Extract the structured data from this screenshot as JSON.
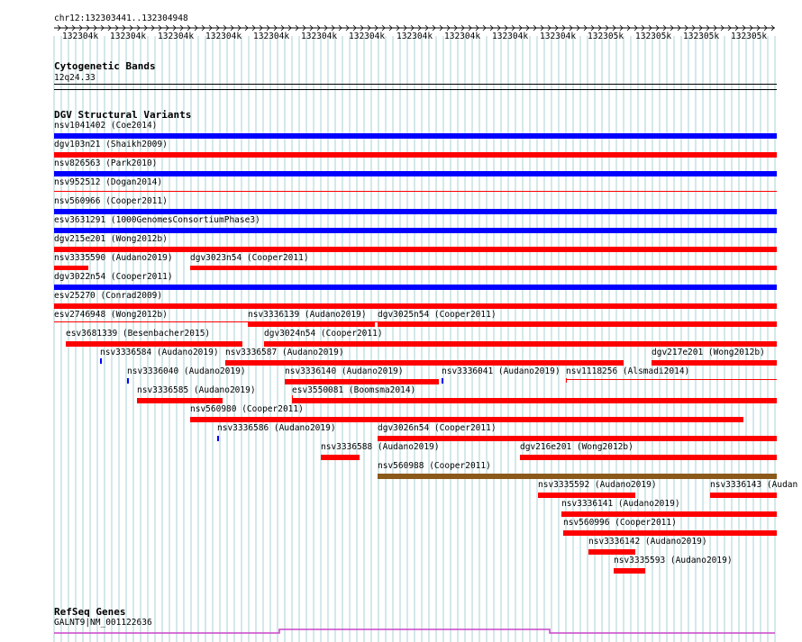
{
  "colors": {
    "red": "#ff0000",
    "blue": "#0000ff",
    "brown": "#8b5a1a",
    "grid": "#a8d0d4",
    "gene": "#cc44cc"
  },
  "ruler": {
    "location": "chr12:132303441..132304948",
    "ticks": [
      "132304k",
      "132304k",
      "132304k",
      "132304k",
      "132304k",
      "132304k",
      "132304k",
      "132304k",
      "132304k",
      "132304k",
      "132304k",
      "132305k",
      "132305k",
      "132305k",
      "132305k"
    ]
  },
  "cytoband": {
    "title": "Cytogenetic Bands",
    "band": "12q24.33"
  },
  "dgv": {
    "title": "DGV Structural Variants",
    "features": [
      {
        "label": "nsv1041402 (Coe2014)",
        "color": "blue"
      },
      {
        "label": "dgv103n21 (Shaikh2009)",
        "color": "red"
      },
      {
        "label": "nsv826563 (Park2010)",
        "color": "blue"
      },
      {
        "label": "nsv952512 (Dogan2014)",
        "color": "red"
      },
      {
        "label": "nsv560966 (Cooper2011)",
        "color": "blue"
      },
      {
        "label": "esv3631291 (1000GenomesConsortiumPhase3)",
        "color": "blue"
      },
      {
        "label": "dgv215e201 (Wong2012b)",
        "color": "red"
      },
      {
        "label": "nsv3335590 (Audano2019)",
        "color": "red"
      },
      {
        "label": "dgv3023n54 (Cooper2011)",
        "color": "red"
      },
      {
        "label": "dgv3022n54 (Cooper2011)",
        "color": "blue"
      },
      {
        "label": "esv25270 (Conrad2009)",
        "color": "red"
      },
      {
        "label": "esv2746948 (Wong2012b)",
        "color": "red"
      },
      {
        "label": "nsv3336139 (Audano2019)",
        "color": "red"
      },
      {
        "label": "dgv3025n54 (Cooper2011)",
        "color": "red"
      },
      {
        "label": "esv3681339 (Besenbacher2015)",
        "color": "red"
      },
      {
        "label": "dgv3024n54 (Cooper2011)",
        "color": "red"
      },
      {
        "label": "nsv3336584 (Audano2019)",
        "color": "blue"
      },
      {
        "label": "nsv3336587 (Audano2019)",
        "color": "red"
      },
      {
        "label": "dgv217e201 (Wong2012b)",
        "color": "red"
      },
      {
        "label": "nsv3336040 (Audano2019)",
        "color": "blue"
      },
      {
        "label": "nsv3336140 (Audano2019)",
        "color": "red"
      },
      {
        "label": "nsv3336041 (Audano2019)",
        "color": "blue"
      },
      {
        "label": "nsv1118256 (Alsmadi2014)",
        "color": "red"
      },
      {
        "label": "nsv3336585 (Audano2019)",
        "color": "red"
      },
      {
        "label": "esv3550081 (Boomsma2014)",
        "color": "red"
      },
      {
        "label": "nsv560980 (Cooper2011)",
        "color": "red"
      },
      {
        "label": "nsv3336586 (Audano2019)",
        "color": "blue"
      },
      {
        "label": "dgv3026n54 (Cooper2011)",
        "color": "red"
      },
      {
        "label": "nsv3336588 (Audano2019)",
        "color": "red"
      },
      {
        "label": "dgv216e201 (Wong2012b)",
        "color": "red"
      },
      {
        "label": "nsv560988 (Cooper2011)",
        "color": "brown"
      },
      {
        "label": "nsv3335592 (Audano2019)",
        "color": "red"
      },
      {
        "label": "nsv3336143 (Audan",
        "color": "red"
      },
      {
        "label": "nsv3336141 (Audano2019)",
        "color": "red"
      },
      {
        "label": "nsv560996 (Cooper2011)",
        "color": "red"
      },
      {
        "label": "nsv3336142 (Audano2019)",
        "color": "red"
      },
      {
        "label": "nsv3335593 (Audano2019)",
        "color": "red"
      }
    ]
  },
  "refseq": {
    "title": "RefSeq Genes",
    "gene": "GALNT9|NM_001122636"
  }
}
